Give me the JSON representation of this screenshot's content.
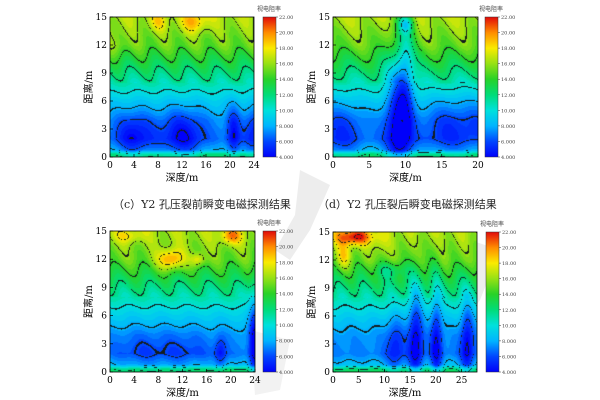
{
  "captions": {
    "c": "（c）Y2 孔压裂前瞬变电磁探测结果",
    "d": "（d）Y2 孔压裂后瞬变电磁探测结果"
  },
  "chart_data": [
    {
      "type": "heatmap",
      "xlabel": "深度/m",
      "ylabel": "距离/m",
      "xlim": [
        0,
        24
      ],
      "ylim": [
        0,
        15
      ],
      "xticks": [
        "0",
        "4",
        "8",
        "12",
        "16",
        "20",
        "24"
      ],
      "yticks": [
        "0",
        "3",
        "6",
        "9",
        "12",
        "15"
      ],
      "colorbar": {
        "title": "视电阻率",
        "ticks": [
          "4.000",
          "6.000",
          "8.000",
          "10.00",
          "12.00",
          "14.00",
          "16.00",
          "18.00",
          "20.00",
          "22.00"
        ],
        "range": [
          4,
          22
        ]
      }
    },
    {
      "type": "heatmap",
      "xlabel": "深度/m",
      "ylabel": "距离/m",
      "xlim": [
        0,
        20
      ],
      "ylim": [
        0,
        15
      ],
      "xticks": [
        "0",
        "5",
        "10",
        "15",
        "20"
      ],
      "yticks": [
        "0",
        "3",
        "6",
        "9",
        "12",
        "15"
      ],
      "colorbar": {
        "title": "视电阻率",
        "ticks": [
          "4.000",
          "6.000",
          "8.000",
          "10.00",
          "12.00",
          "14.00",
          "16.00",
          "18.00",
          "20.00",
          "22.00"
        ],
        "range": [
          4,
          22
        ]
      }
    },
    {
      "type": "heatmap",
      "xlabel": "深度/m",
      "ylabel": "距离/m",
      "xlim": [
        0,
        24
      ],
      "ylim": [
        0,
        15
      ],
      "xticks": [
        "0",
        "4",
        "8",
        "12",
        "16",
        "20",
        "24"
      ],
      "yticks": [
        "0",
        "3",
        "6",
        "9",
        "12",
        "15"
      ],
      "colorbar": {
        "title": "视电阻率",
        "ticks": [
          "4.000",
          "6.000",
          "8.000",
          "10.00",
          "12.00",
          "14.00",
          "16.00",
          "18.00",
          "20.00",
          "22.00"
        ],
        "range": [
          4,
          22
        ]
      }
    },
    {
      "type": "heatmap",
      "xlabel": "深度/m",
      "ylabel": "距离/m",
      "xlim": [
        0,
        28
      ],
      "ylim": [
        0,
        15
      ],
      "xticks": [
        "0",
        "5",
        "10",
        "15",
        "20",
        "25"
      ],
      "yticks": [
        "0",
        "3",
        "6",
        "9",
        "12",
        "15"
      ],
      "colorbar": {
        "title": "视电阻率",
        "ticks": [
          "4.000",
          "6.000",
          "8.000",
          "10.00",
          "12.00",
          "14.00",
          "16.00",
          "18.00",
          "20.00",
          "22.00"
        ],
        "range": [
          4,
          22
        ]
      }
    }
  ]
}
